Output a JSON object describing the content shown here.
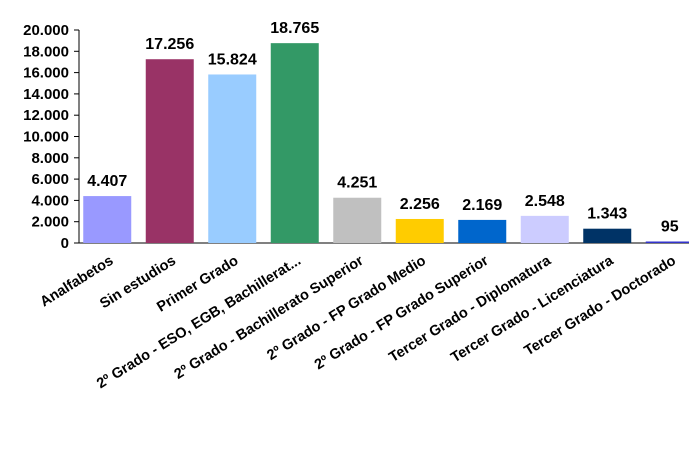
{
  "chart_data": {
    "type": "bar",
    "title": "",
    "xlabel": "",
    "ylabel": "",
    "ylim": [
      0,
      20000
    ],
    "y_ticks": [
      "0",
      "2.000",
      "4.000",
      "6.000",
      "8.000",
      "10.000",
      "12.000",
      "14.000",
      "16.000",
      "18.000",
      "20.000"
    ],
    "y_tick_values": [
      0,
      2000,
      4000,
      6000,
      8000,
      10000,
      12000,
      14000,
      16000,
      18000,
      20000
    ],
    "grid": false,
    "legend": "none",
    "categories": [
      "Analfabetos",
      "Sin estudios",
      "Primer Grado",
      "2º Grado - ESO, EGB, Bachillerat...",
      "2º Grado - Bachillerato Superior",
      "2º Grado - FP Grado Medio",
      "2º Grado - FP Grado Superior",
      "Tercer Grado - Diplomatura",
      "Tercer Grado - Licenciatura",
      "Tercer Grado - Doctorado"
    ],
    "values": [
      4407,
      17256,
      15824,
      18765,
      4251,
      2256,
      2169,
      2548,
      1343,
      95
    ],
    "value_labels": [
      "4.407",
      "17.256",
      "15.824",
      "18.765",
      "4.251",
      "2.256",
      "2.169",
      "2.548",
      "1.343",
      "95"
    ],
    "colors": [
      "#9999FF",
      "#993366",
      "#99CCFF",
      "#339966",
      "#C0C0C0",
      "#FFCC00",
      "#0066CC",
      "#CCCCFF",
      "#003366",
      "#3333CC"
    ]
  }
}
